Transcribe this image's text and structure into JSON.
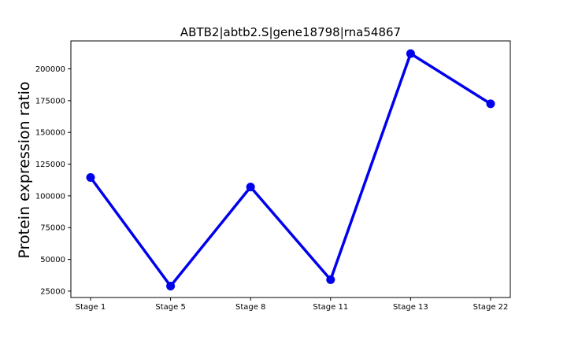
{
  "chart_data": {
    "type": "line",
    "title": "ABTB2|abtb2.S|gene18798|rna54867",
    "xlabel": "",
    "ylabel": "Protein expression ratio",
    "categories": [
      "Stage 1",
      "Stage 5",
      "Stage 8",
      "Stage 11",
      "Stage 13",
      "Stage 22"
    ],
    "series": [
      {
        "values": [
          114500,
          29000,
          107000,
          34000,
          212000,
          172500
        ],
        "color": "#0000ee"
      }
    ],
    "ylim": [
      20000,
      222000
    ],
    "yticks": [
      25000,
      50000,
      75000,
      100000,
      125000,
      150000,
      175000,
      200000
    ],
    "ytick_labels": [
      "25000",
      "50000",
      "75000",
      "100000",
      "125000",
      "150000",
      "175000",
      "200000"
    ],
    "grid": false,
    "legend": "none"
  }
}
